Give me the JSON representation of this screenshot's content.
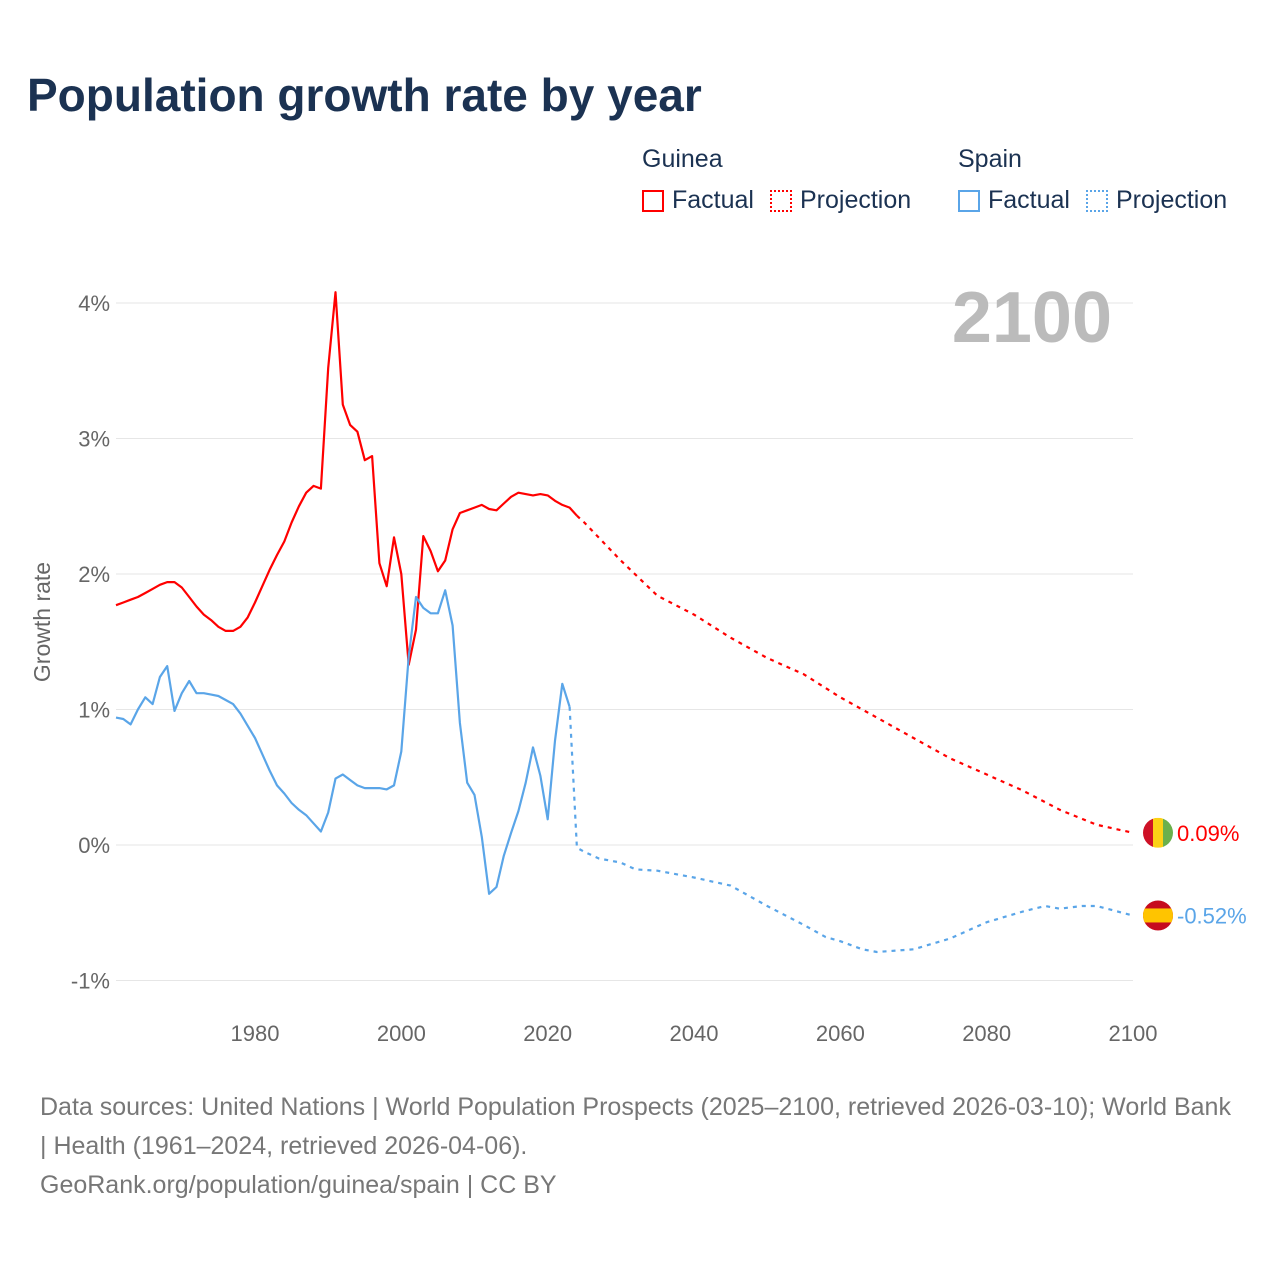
{
  "title": "Population growth rate by year",
  "legend": {
    "groups": [
      {
        "name": "Guinea",
        "color": "#ff0000",
        "items": [
          "Factual",
          "Projection"
        ]
      },
      {
        "name": "Spain",
        "color": "#5aa5e8",
        "items": [
          "Factual",
          "Projection"
        ]
      }
    ]
  },
  "year_label": "2100",
  "footer": {
    "sources": "Data sources: United Nations | World Population Prospects (2025–2100, retrieved 2026-03-10); World Bank | Health (1961–2024, retrieved 2026-04-06).",
    "credit": "GeoRank.org/population/guinea/spain | CC BY"
  },
  "chart_data": {
    "type": "line",
    "title": "Population growth rate by year",
    "xlabel": "",
    "ylabel": "Growth rate",
    "xlim": [
      1961,
      2100
    ],
    "ylim": [
      -1.2,
      4.1
    ],
    "x_ticks": [
      1980,
      2000,
      2020,
      2040,
      2060,
      2080,
      2100
    ],
    "y_ticks": [
      -1,
      0,
      1,
      2,
      3,
      4
    ],
    "y_tick_labels": [
      "-1%",
      "0%",
      "1%",
      "2%",
      "3%",
      "4%"
    ],
    "grid": true,
    "series": [
      {
        "name": "Guinea Factual",
        "color": "#ff0000",
        "dashed": false,
        "x": [
          1961,
          1962,
          1963,
          1964,
          1965,
          1966,
          1967,
          1968,
          1969,
          1970,
          1971,
          1972,
          1973,
          1974,
          1975,
          1976,
          1977,
          1978,
          1979,
          1980,
          1981,
          1982,
          1983,
          1984,
          1985,
          1986,
          1987,
          1988,
          1989,
          1990,
          1991,
          1992,
          1993,
          1994,
          1995,
          1996,
          1997,
          1998,
          1999,
          2000,
          2001,
          2002,
          2003,
          2004,
          2005,
          2006,
          2007,
          2008,
          2009,
          2010,
          2011,
          2012,
          2013,
          2014,
          2015,
          2016,
          2017,
          2018,
          2019,
          2020,
          2021,
          2022,
          2023,
          2024
        ],
        "y": [
          1.77,
          1.79,
          1.81,
          1.83,
          1.86,
          1.89,
          1.92,
          1.94,
          1.94,
          1.9,
          1.83,
          1.76,
          1.7,
          1.66,
          1.61,
          1.58,
          1.58,
          1.61,
          1.68,
          1.79,
          1.91,
          2.03,
          2.14,
          2.24,
          2.38,
          2.5,
          2.6,
          2.65,
          2.63,
          3.52,
          4.08,
          3.25,
          3.1,
          3.05,
          2.84,
          2.87,
          2.08,
          1.91,
          2.27,
          2.0,
          1.33,
          1.59,
          2.28,
          2.17,
          2.02,
          2.1,
          2.33,
          2.45,
          2.47,
          2.49,
          2.51,
          2.48,
          2.47,
          2.52,
          2.57,
          2.6,
          2.59,
          2.58,
          2.59,
          2.58,
          2.54,
          2.51,
          2.49,
          2.43
        ]
      },
      {
        "name": "Guinea Projection",
        "color": "#ff0000",
        "dashed": true,
        "x": [
          2024,
          2025,
          2030,
          2035,
          2040,
          2045,
          2050,
          2055,
          2060,
          2065,
          2070,
          2075,
          2080,
          2085,
          2090,
          2095,
          2100
        ],
        "y": [
          2.43,
          2.38,
          2.1,
          1.84,
          1.7,
          1.53,
          1.38,
          1.26,
          1.09,
          0.94,
          0.79,
          0.64,
          0.52,
          0.4,
          0.26,
          0.15,
          0.09
        ]
      },
      {
        "name": "Spain Factual",
        "color": "#5aa5e8",
        "dashed": false,
        "x": [
          1961,
          1962,
          1963,
          1964,
          1965,
          1966,
          1967,
          1968,
          1969,
          1970,
          1971,
          1972,
          1973,
          1974,
          1975,
          1976,
          1977,
          1978,
          1979,
          1980,
          1981,
          1982,
          1983,
          1984,
          1985,
          1986,
          1987,
          1988,
          1989,
          1990,
          1991,
          1992,
          1993,
          1994,
          1995,
          1996,
          1997,
          1998,
          1999,
          2000,
          2001,
          2002,
          2003,
          2004,
          2005,
          2006,
          2007,
          2008,
          2009,
          2010,
          2011,
          2012,
          2013,
          2014,
          2015,
          2016,
          2017,
          2018,
          2019,
          2020,
          2021,
          2022,
          2023
        ],
        "y": [
          0.94,
          0.93,
          0.89,
          1.0,
          1.09,
          1.04,
          1.24,
          1.32,
          0.99,
          1.12,
          1.21,
          1.12,
          1.12,
          1.11,
          1.1,
          1.07,
          1.04,
          0.97,
          0.88,
          0.79,
          0.67,
          0.55,
          0.44,
          0.38,
          0.31,
          0.26,
          0.22,
          0.16,
          0.1,
          0.24,
          0.49,
          0.52,
          0.48,
          0.44,
          0.42,
          0.42,
          0.42,
          0.41,
          0.44,
          0.69,
          1.39,
          1.83,
          1.75,
          1.71,
          1.71,
          1.88,
          1.62,
          0.9,
          0.46,
          0.37,
          0.06,
          -0.36,
          -0.31,
          -0.08,
          0.09,
          0.25,
          0.46,
          0.72,
          0.51,
          0.19,
          0.77,
          1.19,
          1.02
        ]
      },
      {
        "name": "Spain Projection",
        "color": "#5aa5e8",
        "dashed": true,
        "x": [
          2023,
          2024,
          2025,
          2027,
          2030,
          2032,
          2035,
          2040,
          2045,
          2050,
          2055,
          2058,
          2060,
          2063,
          2065,
          2070,
          2075,
          2080,
          2085,
          2088,
          2090,
          2093,
          2095,
          2100
        ],
        "y": [
          1.02,
          -0.02,
          -0.05,
          -0.1,
          -0.13,
          -0.18,
          -0.19,
          -0.24,
          -0.3,
          -0.45,
          -0.59,
          -0.68,
          -0.71,
          -0.77,
          -0.79,
          -0.77,
          -0.69,
          -0.57,
          -0.49,
          -0.45,
          -0.47,
          -0.45,
          -0.45,
          -0.52
        ]
      }
    ],
    "end_labels": [
      {
        "country": "Guinea",
        "text": "0.09%",
        "value": 0.09,
        "color": "#ff0000"
      },
      {
        "country": "Spain",
        "text": "-0.52%",
        "value": -0.52,
        "color": "#5aa5e8"
      }
    ]
  }
}
